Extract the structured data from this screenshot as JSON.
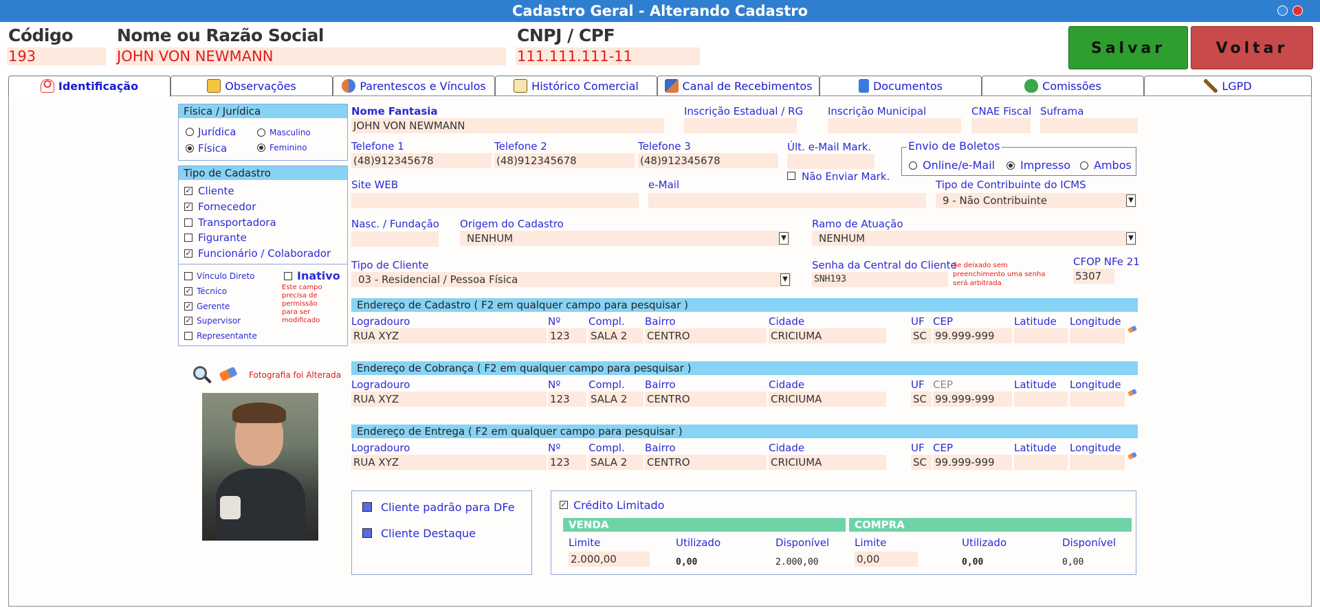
{
  "window": {
    "title": "Cadastro Geral - Alterando Cadastro"
  },
  "header": {
    "codigo_label": "Código",
    "codigo_value": "193",
    "nome_label": "Nome ou Razão Social",
    "nome_value": "JOHN VON NEWMANN",
    "cnpj_label": "CNPJ / CPF",
    "cnpj_value": "111.111.111-11",
    "salvar_label": "Salvar",
    "voltar_label": "Voltar"
  },
  "tabs": [
    {
      "label": "Identificação",
      "icon": "person-icon"
    },
    {
      "label": "Observações",
      "icon": "notes-icon"
    },
    {
      "label": "Parentescos e Vínculos",
      "icon": "family-icon"
    },
    {
      "label": "Histórico Comercial",
      "icon": "history-icon"
    },
    {
      "label": "Canal de Recebimentos",
      "icon": "receipt-icon"
    },
    {
      "label": "Documentos",
      "icon": "document-icon"
    },
    {
      "label": "Comissões",
      "icon": "money-bag-icon"
    },
    {
      "label": "LGPD",
      "icon": "gavel-icon"
    }
  ],
  "left": {
    "tipo_pessoa_title": "Física / Jurídica",
    "juridica": "Jurídica",
    "fisica": "Física",
    "masculino": "Masculino",
    "feminino": "Feminino",
    "tipo_cadastro_title": "Tipo de Cadastro",
    "tipos": [
      "Cliente",
      "Fornecedor",
      "Transportadora",
      "Figurante",
      "Funcionário / Colaborador"
    ],
    "vinculos": [
      "Vínculo Direto",
      "Técnico",
      "Gerente",
      "Supervisor",
      "Representante"
    ],
    "inativo": "Inativo",
    "inativo_note": "Este campo precisa de permissão para ser modificado",
    "foto_status": "Fotografia foi Alterada"
  },
  "form": {
    "nome_fantasia_label": "Nome Fantasia",
    "nome_fantasia": "JOHN VON NEWMANN",
    "ie_label": "Inscrição Estadual / RG",
    "im_label": "Inscrição Municipal",
    "cnae_label": "CNAE Fiscal",
    "suframa_label": "Suframa",
    "tel1_label": "Telefone 1",
    "tel1": "(48)912345678",
    "tel2_label": "Telefone 2",
    "tel2": "(48)912345678",
    "tel3_label": "Telefone 3",
    "tel3": "(48)912345678",
    "ult_email_label": "Últ. e-Mail Mark.",
    "nao_enviar": "Não Enviar Mark.",
    "boletos_title": "Envio de Boletos",
    "bol_online": "Online/e-Mail",
    "bol_impresso": "Impresso",
    "bol_ambos": "Ambos",
    "site_label": "Site WEB",
    "email_label": "e-Mail",
    "icms_label": "Tipo de Contribuinte do ICMS",
    "icms_value": "9 - Não Contribuinte",
    "nasc_label": "Nasc. / Fundação",
    "origem_label": "Origem do Cadastro",
    "origem_value": "NENHUM",
    "ramo_label": "Ramo de Atuação",
    "ramo_value": "NENHUM",
    "tipo_cliente_label": "Tipo de Cliente",
    "tipo_cliente_value": "03 - Residencial / Pessoa Física",
    "senha_label": "Senha da Central do Cliente",
    "senha_value": "SNH193",
    "senha_note": "Se deixado sem preenchimento uma senha será arbitrada",
    "cfop_label": "CFOP NFe 21",
    "cfop_value": "5307"
  },
  "enderecos": {
    "col_labels": {
      "logradouro": "Logradouro",
      "numero": "Nº",
      "compl": "Compl.",
      "bairro": "Bairro",
      "cidade": "Cidade",
      "uf": "UF",
      "cep": "CEP",
      "latitude": "Latitude",
      "longitude": "Longitude"
    },
    "sections": [
      {
        "title": "Endereço de Cadastro ( F2 em qualquer campo para pesquisar )",
        "logradouro": "RUA XYZ",
        "numero": "123",
        "compl": "SALA 2",
        "bairro": "CENTRO",
        "cidade": "CRICIUMA",
        "uf": "SC",
        "cep": "99.999-999"
      },
      {
        "title": "Endereço de Cobrança ( F2 em qualquer campo para pesquisar )",
        "logradouro": "RUA XYZ",
        "numero": "123",
        "compl": "SALA 2",
        "bairro": "CENTRO",
        "cidade": "CRICIUMA",
        "uf": "SC",
        "cep": "99.999-999"
      },
      {
        "title": "Endereço de Entrega ( F2 em qualquer campo para pesquisar )",
        "logradouro": "RUA XYZ",
        "numero": "123",
        "compl": "SALA 2",
        "bairro": "CENTRO",
        "cidade": "CRICIUMA",
        "uf": "SC",
        "cep": "99.999-999"
      }
    ]
  },
  "flags": {
    "padrao_dfe": "Cliente padrão para DFe",
    "destaque": "Cliente Destaque"
  },
  "credito": {
    "title": "Crédito Limitado",
    "venda": "VENDA",
    "compra": "COMPRA",
    "limite_label": "Limite",
    "utilizado_label": "Utilizado",
    "disponivel_label": "Disponível",
    "venda_limite": "2.000,00",
    "venda_utilizado": "0,00",
    "venda_disponivel": "2.000,00",
    "compra_limite": "0,00",
    "compra_utilizado": "0,00",
    "compra_disponivel": "0,00"
  },
  "colors": {
    "titlebar": "#2f7fd0",
    "salvar": "#2e9e2e",
    "voltar": "#c94a4a",
    "field": "#fde9dd",
    "section": "#87d3f5"
  }
}
